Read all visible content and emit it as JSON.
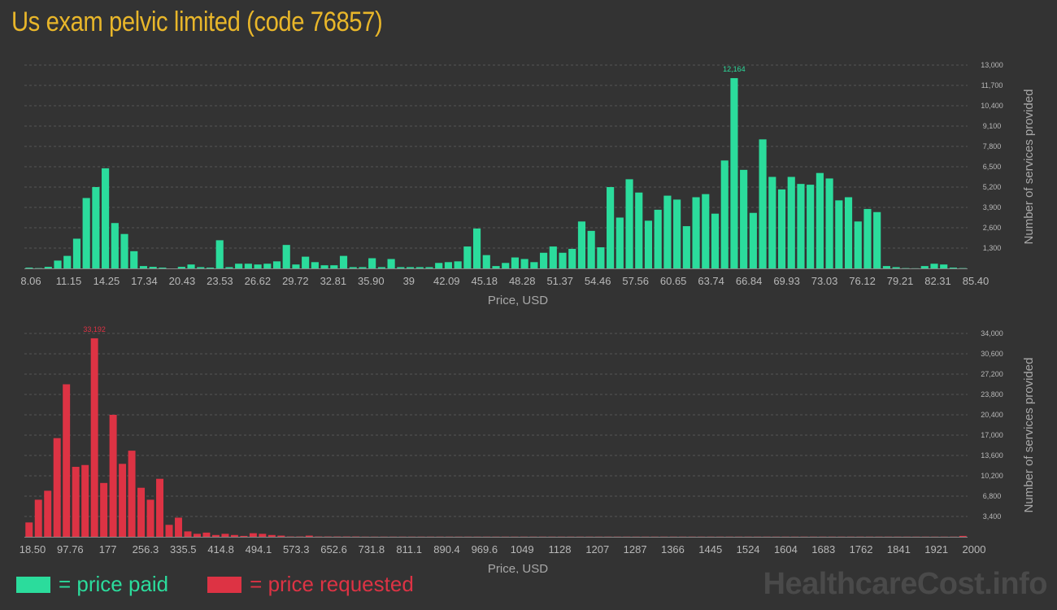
{
  "title": "Us exam pelvic limited (code 76857)",
  "colors": {
    "paid": "#2bdc9c",
    "requested": "#dd3344",
    "title": "#e8b62a",
    "background": "#333333"
  },
  "legend": {
    "paid_label": "= price paid",
    "requested_label": "= price requested"
  },
  "watermark": "HealthcareCost.info",
  "chart_data": [
    {
      "type": "bar",
      "series_name": "price paid",
      "xlabel": "Price, USD",
      "ylabel": "Number of services provided",
      "ylim": [
        0,
        13000
      ],
      "yticks": [
        "1,300",
        "2,600",
        "3,900",
        "5,200",
        "6,500",
        "7,800",
        "9,100",
        "10,400",
        "11,700",
        "13,000"
      ],
      "xticks": [
        "8.06",
        "11.15",
        "14.25",
        "17.34",
        "20.43",
        "23.53",
        "26.62",
        "29.72",
        "32.81",
        "35.90",
        "39",
        "42.09",
        "45.18",
        "48.28",
        "51.37",
        "54.46",
        "57.56",
        "60.65",
        "63.74",
        "66.84",
        "69.93",
        "73.03",
        "76.12",
        "79.21",
        "82.31",
        "85.40"
      ],
      "peak_label": "12,164",
      "values": [
        50,
        20,
        100,
        500,
        800,
        1900,
        4500,
        5200,
        6400,
        2900,
        2200,
        1100,
        150,
        100,
        50,
        0,
        100,
        250,
        80,
        50,
        1800,
        80,
        300,
        300,
        250,
        300,
        450,
        1500,
        250,
        750,
        400,
        200,
        200,
        800,
        80,
        80,
        650,
        80,
        600,
        80,
        80,
        80,
        80,
        350,
        400,
        450,
        1400,
        2550,
        850,
        150,
        350,
        700,
        600,
        400,
        1000,
        1400,
        1000,
        1250,
        3000,
        2400,
        1350,
        5200,
        3250,
        5700,
        4850,
        3050,
        3750,
        4650,
        4400,
        2700,
        4550,
        4750,
        3500,
        6900,
        12164,
        6300,
        3550,
        8250,
        5850,
        5050,
        5850,
        5400,
        5350,
        6100,
        5750,
        4350,
        4550,
        3000,
        3800,
        3600,
        150,
        80,
        20,
        10,
        150,
        300,
        250,
        50,
        20
      ]
    },
    {
      "type": "bar",
      "series_name": "price requested",
      "xlabel": "Price, USD",
      "ylabel": "Number of services provided",
      "ylim": [
        0,
        34000
      ],
      "yticks": [
        "3,400",
        "6,800",
        "10,200",
        "13,600",
        "17,000",
        "20,400",
        "23,800",
        "27,200",
        "30,600",
        "34,000"
      ],
      "xticks": [
        "18.50",
        "97.76",
        "177",
        "256.3",
        "335.5",
        "414.8",
        "494.1",
        "573.3",
        "652.6",
        "731.8",
        "811.1",
        "890.4",
        "969.6",
        "1049",
        "1128",
        "1207",
        "1287",
        "1366",
        "1445",
        "1524",
        "1604",
        "1683",
        "1762",
        "1841",
        "1921",
        "2000"
      ],
      "peak_label": "33,192",
      "values": [
        2400,
        6200,
        7700,
        16500,
        25500,
        11700,
        12000,
        33192,
        9000,
        20400,
        12200,
        14400,
        8200,
        6200,
        9700,
        2000,
        3200,
        900,
        500,
        700,
        300,
        500,
        300,
        150,
        600,
        500,
        300,
        200,
        50,
        50,
        200,
        50,
        50,
        50,
        50,
        50,
        30,
        30,
        30,
        30,
        30,
        30,
        30,
        30,
        30,
        30,
        30,
        30,
        30,
        30,
        30,
        30,
        30,
        30,
        30,
        30,
        30,
        30,
        30,
        30,
        30,
        30,
        30,
        30,
        30,
        30,
        30,
        30,
        30,
        30,
        30,
        30,
        30,
        30,
        30,
        30,
        30,
        30,
        30,
        30,
        30,
        30,
        30,
        30,
        30,
        30,
        30,
        30,
        30,
        30,
        30,
        30,
        30,
        30,
        30,
        30,
        30,
        30,
        30,
        30,
        150
      ]
    }
  ]
}
